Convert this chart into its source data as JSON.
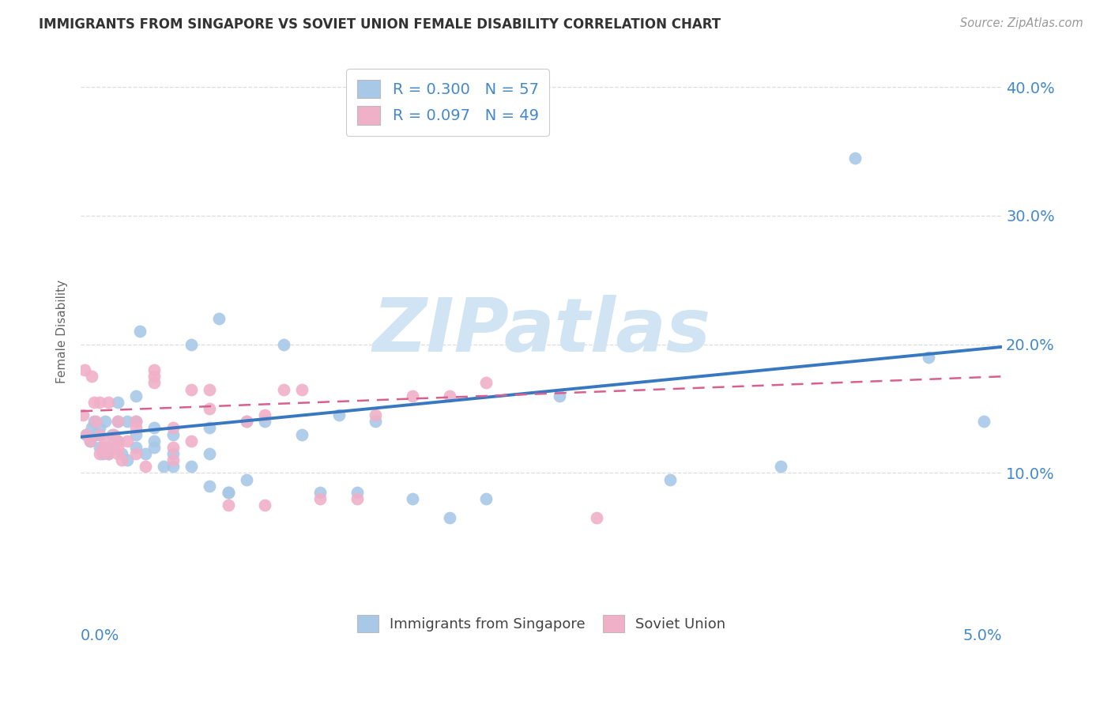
{
  "title": "IMMIGRANTS FROM SINGAPORE VS SOVIET UNION FEMALE DISABILITY CORRELATION CHART",
  "source": "Source: ZipAtlas.com",
  "ylabel": "Female Disability",
  "xlim": [
    0.0,
    0.05
  ],
  "ylim": [
    0.0,
    0.42
  ],
  "yticks": [
    0.1,
    0.2,
    0.3,
    0.4
  ],
  "ytick_labels": [
    "10.0%",
    "20.0%",
    "30.0%",
    "40.0%"
  ],
  "xticks": [
    0.0,
    0.01,
    0.02,
    0.03,
    0.04,
    0.05
  ],
  "R_singapore": 0.3,
  "N_singapore": 57,
  "R_soviet": 0.097,
  "N_soviet": 49,
  "color_singapore": "#a8c8e8",
  "color_soviet": "#f0b0c8",
  "color_blue": "#3878c0",
  "color_pink": "#d86090",
  "color_axis_blue": "#4488cc",
  "color_title": "#333333",
  "color_source": "#999999",
  "watermark_text": "ZIPatlas",
  "watermark_color": "#d0e4f4",
  "background": "#ffffff",
  "grid_color": "#dddddd",
  "singapore_x": [
    0.0003,
    0.0005,
    0.0006,
    0.0007,
    0.0008,
    0.001,
    0.001,
    0.0012,
    0.0013,
    0.0015,
    0.0015,
    0.0017,
    0.002,
    0.002,
    0.002,
    0.0022,
    0.0025,
    0.0025,
    0.003,
    0.003,
    0.003,
    0.003,
    0.0032,
    0.0035,
    0.004,
    0.004,
    0.004,
    0.0045,
    0.005,
    0.005,
    0.005,
    0.006,
    0.006,
    0.007,
    0.007,
    0.007,
    0.0075,
    0.008,
    0.008,
    0.009,
    0.009,
    0.01,
    0.011,
    0.012,
    0.013,
    0.014,
    0.015,
    0.016,
    0.018,
    0.02,
    0.022,
    0.026,
    0.032,
    0.038,
    0.042,
    0.046,
    0.049
  ],
  "singapore_y": [
    0.13,
    0.125,
    0.135,
    0.14,
    0.13,
    0.12,
    0.135,
    0.115,
    0.14,
    0.12,
    0.115,
    0.13,
    0.125,
    0.14,
    0.155,
    0.115,
    0.11,
    0.14,
    0.13,
    0.14,
    0.16,
    0.12,
    0.21,
    0.115,
    0.12,
    0.125,
    0.135,
    0.105,
    0.105,
    0.115,
    0.13,
    0.105,
    0.2,
    0.09,
    0.115,
    0.135,
    0.22,
    0.085,
    0.085,
    0.095,
    0.14,
    0.14,
    0.2,
    0.13,
    0.085,
    0.145,
    0.085,
    0.14,
    0.08,
    0.065,
    0.08,
    0.16,
    0.095,
    0.105,
    0.345,
    0.19,
    0.14
  ],
  "soviet_x": [
    0.0001,
    0.0002,
    0.0003,
    0.0005,
    0.0006,
    0.0007,
    0.0008,
    0.001,
    0.001,
    0.001,
    0.0012,
    0.0013,
    0.0015,
    0.0015,
    0.0015,
    0.0018,
    0.002,
    0.002,
    0.002,
    0.002,
    0.0022,
    0.0025,
    0.003,
    0.003,
    0.003,
    0.0035,
    0.004,
    0.004,
    0.004,
    0.005,
    0.005,
    0.005,
    0.006,
    0.006,
    0.007,
    0.007,
    0.008,
    0.009,
    0.01,
    0.01,
    0.011,
    0.012,
    0.013,
    0.015,
    0.016,
    0.018,
    0.02,
    0.022,
    0.028
  ],
  "soviet_y": [
    0.145,
    0.18,
    0.13,
    0.125,
    0.175,
    0.155,
    0.14,
    0.115,
    0.13,
    0.155,
    0.12,
    0.125,
    0.12,
    0.155,
    0.115,
    0.13,
    0.115,
    0.12,
    0.125,
    0.14,
    0.11,
    0.125,
    0.115,
    0.135,
    0.14,
    0.105,
    0.17,
    0.175,
    0.18,
    0.11,
    0.12,
    0.135,
    0.125,
    0.165,
    0.15,
    0.165,
    0.075,
    0.14,
    0.075,
    0.145,
    0.165,
    0.165,
    0.08,
    0.08,
    0.145,
    0.16,
    0.16,
    0.17,
    0.065
  ],
  "sg_line_x0": 0.0,
  "sg_line_y0": 0.128,
  "sg_line_x1": 0.05,
  "sg_line_y1": 0.198,
  "sv_line_x0": 0.0,
  "sv_line_y0": 0.148,
  "sv_line_x1": 0.05,
  "sv_line_y1": 0.175
}
